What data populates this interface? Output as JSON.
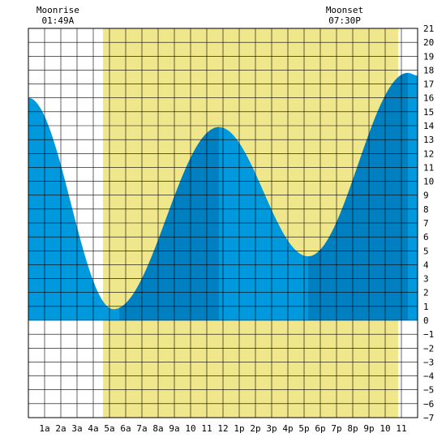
{
  "chart_data": {
    "type": "area",
    "title": "",
    "xlabel": "",
    "ylabel": "",
    "xlim": [
      0,
      24
    ],
    "ylim": [
      -7,
      21
    ],
    "grid": true,
    "x_tick_labels": [
      "1a",
      "2a",
      "3a",
      "4a",
      "5a",
      "6a",
      "7a",
      "8a",
      "9a",
      "10",
      "11",
      "12",
      "1p",
      "2p",
      "3p",
      "4p",
      "5p",
      "6p",
      "7p",
      "8p",
      "9p",
      "10",
      "11"
    ],
    "y_ticks": [
      -7,
      -6,
      -5,
      -4,
      -3,
      -2,
      -1,
      0,
      1,
      2,
      3,
      4,
      5,
      6,
      7,
      8,
      9,
      10,
      11,
      12,
      13,
      14,
      15,
      16,
      17,
      18,
      19,
      20,
      21
    ],
    "y_tick_labels": [
      "−7",
      "−6",
      "−5",
      "−4",
      "−3",
      "−2",
      "−1",
      "0",
      "1",
      "2",
      "3",
      "4",
      "5",
      "6",
      "7",
      "8",
      "9",
      "10",
      "11",
      "12",
      "13",
      "14",
      "15",
      "16",
      "17",
      "18",
      "19",
      "20",
      "21"
    ],
    "daylight": {
      "start": 4.6,
      "end": 22.8
    },
    "moonrise": {
      "label": "Moonrise",
      "time": "01:49A",
      "x": 1.82
    },
    "moonset": {
      "label": "Moonset",
      "time": "07:30P",
      "x": 19.5
    },
    "tide_extremes": [
      {
        "x": 0.0,
        "y": 16.0
      },
      {
        "x": 5.25,
        "y": 0.8
      },
      {
        "x": 11.75,
        "y": 13.9
      },
      {
        "x": 17.25,
        "y": 4.6
      },
      {
        "x": 23.4,
        "y": 17.8
      },
      {
        "x": 24.0,
        "y": 17.6
      }
    ],
    "dark_bands": [
      [
        5.6,
        11.75
      ],
      [
        17.25,
        23.4
      ]
    ],
    "colors": {
      "daylight": "#f0e68c",
      "tide_light": "#0099dd",
      "tide_dark": "#0080c0",
      "grid": "#000000"
    }
  }
}
